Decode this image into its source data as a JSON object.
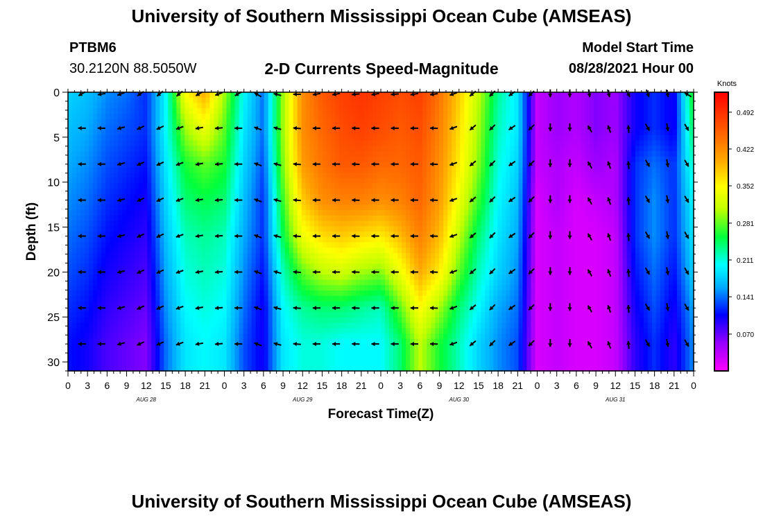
{
  "header": {
    "title_top": "University of Southern Mississippi Ocean Cube (AMSEAS)",
    "title_bottom": "University of Southern Mississippi Ocean Cube (AMSEAS)",
    "station": "PTBM6",
    "location": "30.2120N  88.5050W",
    "plot_title": "2-D Currents Speed-Magnitude",
    "model_label": "Model Start Time",
    "model_time": "08/28/2021 Hour 00"
  },
  "chart_data": {
    "type": "heatmap",
    "title": "2-D Currents Speed-Magnitude",
    "xlabel": "Forecast Time(Z)",
    "ylabel": "Depth (ft)",
    "x_ticks": [
      "0",
      "3",
      "6",
      "9",
      "12",
      "15",
      "18",
      "21",
      "0",
      "3",
      "6",
      "9",
      "12",
      "15",
      "18",
      "21",
      "0",
      "3",
      "6",
      "9",
      "12",
      "15",
      "18",
      "21",
      "0",
      "3",
      "6",
      "9",
      "12",
      "15",
      "18",
      "21",
      "0"
    ],
    "x_range_hours": [
      0,
      96
    ],
    "date_labels": [
      {
        "label": "AUG 28",
        "hour": 12
      },
      {
        "label": "AUG 29",
        "hour": 36
      },
      {
        "label": "AUG 30",
        "hour": 60
      },
      {
        "label": "AUG 31",
        "hour": 84
      }
    ],
    "y_ticks": [
      0,
      5,
      10,
      15,
      20,
      25,
      30
    ],
    "y_range_ft": [
      0,
      31
    ],
    "colorbar": {
      "unit": "Knots",
      "ticks": [
        "0.492",
        "0.422",
        "0.352",
        "0.281",
        "0.211",
        "0.141",
        "0.070"
      ],
      "range": [
        0,
        0.53
      ]
    },
    "depths_ft": [
      0,
      4,
      8,
      12,
      16,
      20,
      24,
      28
    ],
    "speed_hours": [
      0,
      3,
      6,
      9,
      12,
      15,
      18,
      21,
      24,
      27,
      30,
      33,
      36,
      39,
      42,
      45,
      48,
      51,
      54,
      57,
      60,
      63,
      66,
      69,
      72,
      75,
      78,
      81,
      84,
      87,
      90,
      93,
      96
    ],
    "speed": [
      [
        0.18,
        0.17,
        0.15,
        0.14,
        0.12,
        0.2,
        0.35,
        0.4,
        0.3,
        0.2,
        0.14,
        0.3,
        0.42,
        0.46,
        0.48,
        0.49,
        0.48,
        0.47,
        0.48,
        0.44,
        0.38,
        0.31,
        0.23,
        0.19,
        0.03,
        0.05,
        0.04,
        0.06,
        0.05,
        0.1,
        0.12,
        0.1,
        0.27
      ],
      [
        0.17,
        0.16,
        0.14,
        0.13,
        0.12,
        0.2,
        0.3,
        0.34,
        0.28,
        0.19,
        0.14,
        0.3,
        0.42,
        0.45,
        0.47,
        0.48,
        0.47,
        0.46,
        0.47,
        0.43,
        0.37,
        0.3,
        0.22,
        0.19,
        0.03,
        0.05,
        0.04,
        0.06,
        0.05,
        0.1,
        0.12,
        0.1,
        0.25
      ],
      [
        0.16,
        0.15,
        0.13,
        0.12,
        0.11,
        0.19,
        0.26,
        0.28,
        0.26,
        0.18,
        0.13,
        0.29,
        0.41,
        0.44,
        0.46,
        0.46,
        0.45,
        0.45,
        0.46,
        0.42,
        0.36,
        0.29,
        0.21,
        0.18,
        0.03,
        0.04,
        0.03,
        0.05,
        0.04,
        0.12,
        0.14,
        0.12,
        0.22
      ],
      [
        0.15,
        0.14,
        0.12,
        0.11,
        0.1,
        0.18,
        0.24,
        0.25,
        0.24,
        0.17,
        0.12,
        0.27,
        0.38,
        0.42,
        0.43,
        0.43,
        0.42,
        0.43,
        0.45,
        0.41,
        0.34,
        0.27,
        0.2,
        0.17,
        0.02,
        0.04,
        0.02,
        0.03,
        0.04,
        0.12,
        0.15,
        0.12,
        0.2
      ],
      [
        0.14,
        0.13,
        0.11,
        0.1,
        0.09,
        0.17,
        0.22,
        0.23,
        0.22,
        0.16,
        0.12,
        0.25,
        0.34,
        0.37,
        0.38,
        0.37,
        0.36,
        0.39,
        0.43,
        0.39,
        0.31,
        0.24,
        0.19,
        0.16,
        0.02,
        0.03,
        0.02,
        0.02,
        0.03,
        0.12,
        0.15,
        0.12,
        0.19
      ],
      [
        0.13,
        0.12,
        0.1,
        0.09,
        0.08,
        0.16,
        0.21,
        0.22,
        0.21,
        0.15,
        0.11,
        0.22,
        0.28,
        0.31,
        0.32,
        0.3,
        0.29,
        0.34,
        0.4,
        0.36,
        0.28,
        0.22,
        0.18,
        0.15,
        0.02,
        0.03,
        0.02,
        0.02,
        0.03,
        0.11,
        0.14,
        0.11,
        0.18
      ],
      [
        0.12,
        0.11,
        0.09,
        0.08,
        0.07,
        0.15,
        0.2,
        0.21,
        0.2,
        0.14,
        0.1,
        0.2,
        0.23,
        0.24,
        0.24,
        0.23,
        0.22,
        0.28,
        0.35,
        0.3,
        0.24,
        0.2,
        0.16,
        0.14,
        0.02,
        0.03,
        0.02,
        0.02,
        0.03,
        0.1,
        0.13,
        0.1,
        0.16
      ],
      [
        0.11,
        0.1,
        0.08,
        0.07,
        0.06,
        0.14,
        0.19,
        0.2,
        0.19,
        0.13,
        0.1,
        0.19,
        0.21,
        0.21,
        0.2,
        0.2,
        0.2,
        0.24,
        0.31,
        0.26,
        0.22,
        0.18,
        0.15,
        0.13,
        0.02,
        0.03,
        0.02,
        0.02,
        0.03,
        0.09,
        0.12,
        0.09,
        0.15
      ]
    ],
    "vectors": {
      "note": "current direction in degrees (0 = north, clockwise) at each sampled hour and depth",
      "hours": [
        2,
        5,
        8,
        11,
        14,
        17,
        20,
        23,
        26,
        29,
        32,
        35,
        38,
        41,
        44,
        47,
        50,
        53,
        56,
        59,
        62,
        65,
        68,
        71,
        74,
        77,
        80,
        83,
        86,
        89,
        92,
        95
      ],
      "depths_ft": [
        0,
        4,
        8,
        12,
        16,
        20,
        24,
        28
      ],
      "directions_deg": [
        [
          240,
          260,
          250,
          235,
          230,
          230,
          240,
          250,
          240,
          300,
          285,
          270,
          260,
          260,
          265,
          260,
          265,
          260,
          262,
          250,
          230,
          225,
          235,
          225,
          180,
          180,
          170,
          165,
          150,
          160,
          165,
          300
        ],
        [
          270,
          270,
          255,
          245,
          245,
          250,
          260,
          265,
          270,
          290,
          285,
          275,
          270,
          270,
          272,
          270,
          270,
          270,
          272,
          250,
          230,
          225,
          235,
          225,
          180,
          180,
          330,
          340,
          355,
          150,
          170,
          150
        ],
        [
          270,
          270,
          255,
          245,
          245,
          250,
          260,
          265,
          270,
          290,
          285,
          275,
          270,
          270,
          272,
          270,
          270,
          270,
          272,
          250,
          230,
          225,
          235,
          225,
          180,
          180,
          330,
          340,
          355,
          150,
          170,
          150
        ],
        [
          270,
          270,
          255,
          245,
          245,
          250,
          260,
          265,
          270,
          290,
          285,
          275,
          270,
          270,
          272,
          270,
          270,
          270,
          272,
          250,
          230,
          225,
          235,
          225,
          180,
          180,
          330,
          340,
          355,
          150,
          170,
          150
        ],
        [
          270,
          270,
          255,
          245,
          245,
          250,
          260,
          265,
          270,
          290,
          285,
          275,
          270,
          270,
          272,
          270,
          270,
          270,
          272,
          250,
          230,
          225,
          235,
          225,
          180,
          180,
          330,
          340,
          355,
          150,
          170,
          150
        ],
        [
          270,
          270,
          255,
          245,
          245,
          250,
          260,
          265,
          270,
          290,
          285,
          275,
          270,
          270,
          272,
          270,
          270,
          270,
          272,
          250,
          230,
          225,
          235,
          225,
          180,
          180,
          330,
          340,
          355,
          150,
          170,
          150
        ],
        [
          270,
          270,
          255,
          245,
          245,
          250,
          260,
          265,
          270,
          290,
          285,
          275,
          270,
          270,
          272,
          270,
          270,
          270,
          272,
          250,
          230,
          225,
          235,
          225,
          180,
          180,
          330,
          340,
          355,
          150,
          170,
          150
        ],
        [
          270,
          270,
          255,
          245,
          245,
          250,
          260,
          265,
          270,
          290,
          285,
          275,
          270,
          270,
          272,
          270,
          270,
          270,
          272,
          250,
          230,
          225,
          235,
          225,
          180,
          180,
          330,
          340,
          355,
          150,
          170,
          150
        ]
      ]
    }
  }
}
